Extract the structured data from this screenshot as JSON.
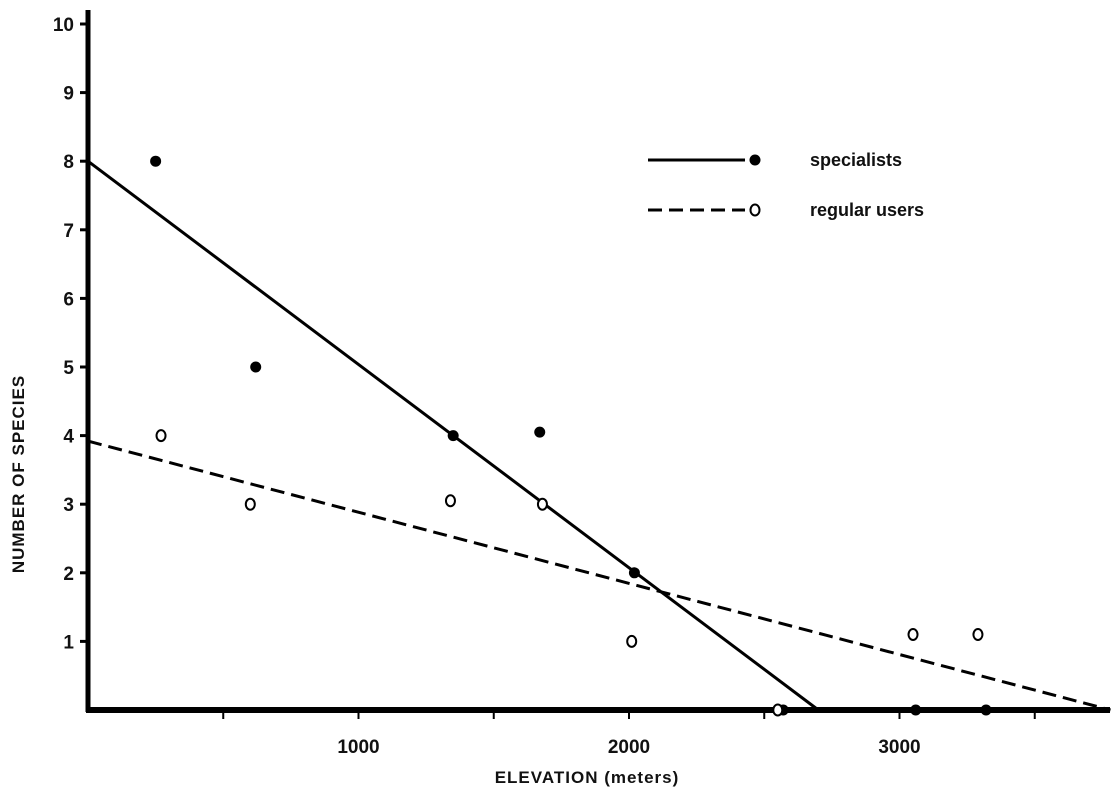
{
  "chart_data": {
    "type": "scatter",
    "xlabel": "ELEVATION (meters)",
    "ylabel": "NUMBER OF SPECIES",
    "xlim": [
      0,
      3800
    ],
    "ylim": [
      0,
      10
    ],
    "x_ticks": [
      500,
      1000,
      1500,
      2000,
      2500,
      3000,
      3500
    ],
    "x_tick_labels": [
      "",
      "1000",
      "",
      "2000",
      "",
      "3000",
      ""
    ],
    "y_ticks": [
      1,
      2,
      3,
      4,
      5,
      6,
      7,
      8,
      9,
      10
    ],
    "y_tick_labels": [
      "1",
      "2",
      "3",
      "4",
      "5",
      "6",
      "7",
      "8",
      "9",
      "10"
    ],
    "grid": false,
    "legend_position": "top-right",
    "series": [
      {
        "name": "specialists",
        "marker": "filled-circle",
        "line_style": "solid",
        "color": "#000000",
        "points": [
          {
            "x": 250,
            "y": 8
          },
          {
            "x": 620,
            "y": 5
          },
          {
            "x": 1350,
            "y": 4
          },
          {
            "x": 1670,
            "y": 4.05
          },
          {
            "x": 2020,
            "y": 2
          },
          {
            "x": 2570,
            "y": 0
          },
          {
            "x": 3060,
            "y": 0
          },
          {
            "x": 3320,
            "y": 0
          }
        ],
        "fit_line": [
          {
            "x": 0,
            "y": 8
          },
          {
            "x": 2700,
            "y": 0
          }
        ]
      },
      {
        "name": "regular users",
        "marker": "open-circle",
        "line_style": "dashed",
        "color": "#000000",
        "points": [
          {
            "x": 270,
            "y": 4
          },
          {
            "x": 600,
            "y": 3
          },
          {
            "x": 1340,
            "y": 3.05
          },
          {
            "x": 1680,
            "y": 3
          },
          {
            "x": 2010,
            "y": 1
          },
          {
            "x": 2550,
            "y": 0
          },
          {
            "x": 3050,
            "y": 1.1
          },
          {
            "x": 3290,
            "y": 1.1
          }
        ],
        "fit_line": [
          {
            "x": 0,
            "y": 3.92
          },
          {
            "x": 3780,
            "y": 0
          }
        ]
      }
    ]
  }
}
